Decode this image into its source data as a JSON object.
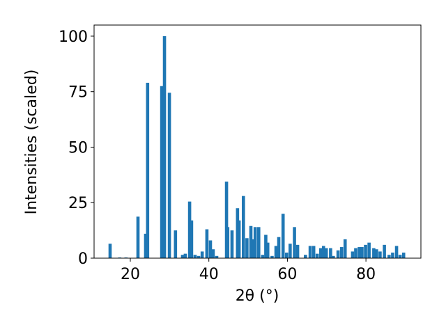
{
  "chart_data": {
    "type": "bar",
    "xlabel": "2θ (°)",
    "ylabel": "Intensities (scaled)",
    "color": "#1f77b4",
    "x": [
      14.85,
      17.3,
      18.9,
      21.95,
      23.9,
      24.4,
      28.0,
      28.7,
      29.95,
      31.5,
      33.3,
      34.0,
      35.1,
      35.6,
      36.5,
      37.4,
      38.3,
      39.5,
      40.4,
      41.1,
      42.0,
      44.5,
      44.8,
      45.9,
      47.3,
      47.7,
      48.8,
      49.7,
      50.7,
      51.4,
      51.8,
      52.7,
      53.7,
      54.5,
      55.0,
      56.1,
      57.1,
      57.8,
      58.9,
      59.8,
      60.7,
      61.8,
      62.6,
      64.6,
      65.8,
      66.7,
      67.6,
      68.5,
      69.2,
      69.9,
      71.0,
      71.7,
      72.9,
      73.8,
      74.7,
      76.6,
      77.4,
      78.3,
      79.0,
      79.9,
      80.8,
      82.0,
      82.7,
      83.6,
      84.7,
      85.9,
      86.8,
      87.8,
      88.7,
      89.6
    ],
    "values": [
      6.5,
      0.3,
      0.3,
      18.7,
      11,
      79,
      77.5,
      100,
      74.5,
      12.5,
      1.5,
      2,
      25.5,
      17,
      1.5,
      1,
      3,
      13,
      8,
      4,
      1,
      34.5,
      14,
      12.5,
      22.5,
      17,
      28,
      9,
      14.5,
      8.5,
      14,
      14,
      1.5,
      10.5,
      7,
      1,
      5.5,
      9.5,
      20,
      2.5,
      6.5,
      14,
      6,
      1.5,
      5.5,
      5.5,
      2,
      4.5,
      5.5,
      4.5,
      4.5,
      1,
      3.5,
      5,
      8.5,
      3,
      4.5,
      5,
      5,
      6,
      7,
      4.5,
      4,
      3,
      6,
      1.5,
      2.5,
      5.5,
      1.5,
      2.5
    ],
    "xlim": [
      10.77,
      94.0
    ],
    "ylim": [
      0,
      105
    ],
    "xticks": [
      20,
      40,
      60,
      80
    ],
    "yticks": [
      0,
      25,
      50,
      75,
      100
    ]
  }
}
